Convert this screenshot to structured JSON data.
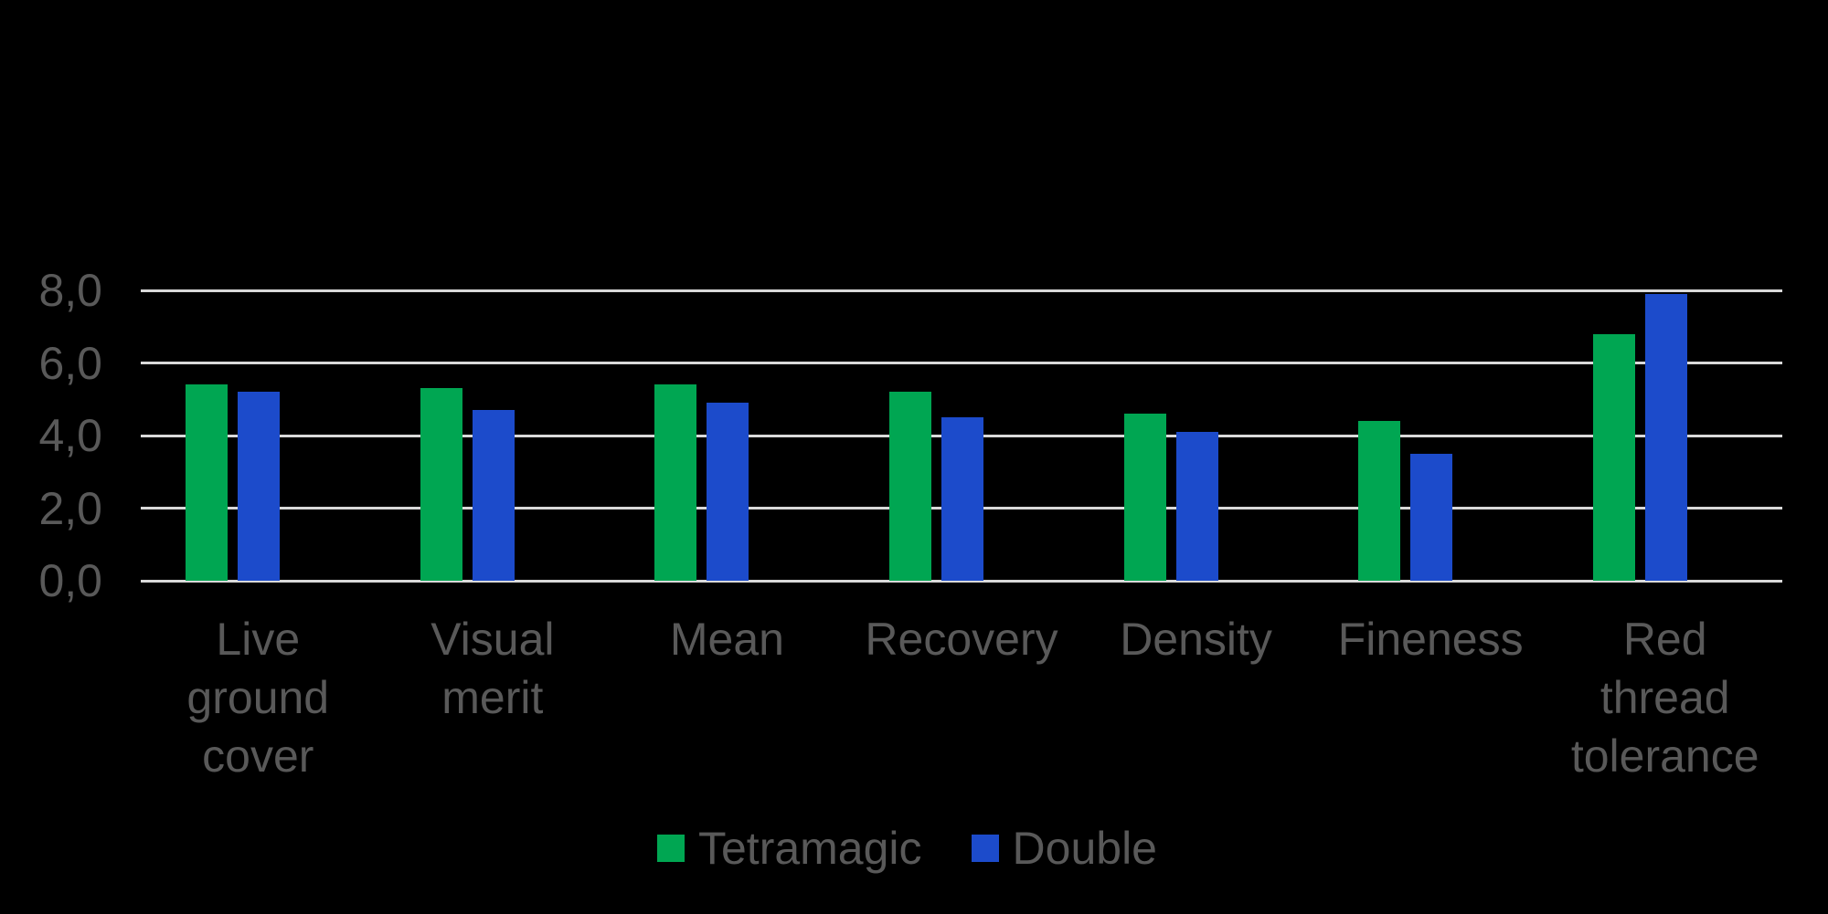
{
  "chart_data": {
    "type": "bar",
    "categories": [
      "Live ground cover",
      "Visual merit",
      "Mean",
      "Recovery",
      "Density",
      "Fineness",
      "Red thread tolerance"
    ],
    "series": [
      {
        "name": "Tetramagic",
        "color": "#00A652",
        "values": [
          5.4,
          5.3,
          5.4,
          5.2,
          4.6,
          4.4,
          6.8
        ]
      },
      {
        "name": "Double",
        "color": "#1C4BCB",
        "values": [
          5.2,
          4.7,
          4.9,
          4.5,
          4.1,
          3.5,
          7.9
        ]
      }
    ],
    "ylim": [
      0,
      8
    ],
    "yticks": [
      0,
      2,
      4,
      6,
      8
    ],
    "ytick_labels": [
      "0,0",
      "2,0",
      "4,0",
      "6,0",
      "8,0"
    ],
    "grid": "horizontal",
    "gridline_color": "#D9D9D9",
    "background_color": "#000000",
    "text_color": "#595959",
    "legend_position": "bottom"
  }
}
